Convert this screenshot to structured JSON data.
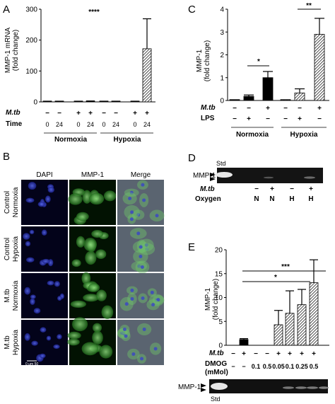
{
  "figure": {
    "panel_a": {
      "letter": "A",
      "ylabel_line1": "MMP-1 mRNA",
      "ylabel_line2": "(fold change)",
      "significance": "****",
      "row_mtb_label": "M.tb",
      "row_mtb": [
        "−",
        "−",
        "+",
        "+",
        "−",
        "−",
        "+",
        "+"
      ],
      "row_time_label": "Time",
      "row_time": [
        "0",
        "24",
        "0",
        "24",
        "0",
        "24",
        "0",
        "24"
      ],
      "group_labels": [
        "Normoxia",
        "Hypoxia"
      ]
    },
    "panel_b": {
      "letter": "B",
      "col_headers": [
        "DAPI",
        "MMP-1",
        "Merge"
      ],
      "row_labels": [
        {
          "line1": "Control",
          "line2": "Normoxia"
        },
        {
          "line1": "Control",
          "line2": "Hypoxia"
        },
        {
          "line1": "M.tb",
          "line2": "Normoxia"
        },
        {
          "line1": "M.tb",
          "line2": "Hypoxia"
        }
      ],
      "scale_label": "0  μm  50"
    },
    "panel_c": {
      "letter": "C",
      "ylabel_line1": "MMP-1",
      "ylabel_line2": "(fold change)",
      "sig_normoxia": "*",
      "sig_hypoxia": "**",
      "row_mtb_label": "M.tb",
      "row_mtb": [
        "−",
        "−",
        "+",
        "−",
        "−",
        "+"
      ],
      "row_lps_label": "LPS",
      "row_lps": [
        "−",
        "+",
        "−",
        "−",
        "+",
        "−"
      ],
      "group_labels": [
        "Normoxia",
        "Hypoxia"
      ]
    },
    "panel_d": {
      "letter": "D",
      "std_label": "Std",
      "band_label": "MMP-1",
      "row_mtb_label": "M.tb",
      "row_mtb": [
        "−",
        "+",
        "−",
        "+"
      ],
      "row_oxygen_label": "Oxygen",
      "row_oxygen": [
        "N",
        "N",
        "H",
        "H"
      ]
    },
    "panel_e": {
      "letter": "E",
      "ylabel_line1": "MMP-1",
      "ylabel_line2": "(fold change)",
      "sig_top": "***",
      "sig_second": "*",
      "row_mtb_label": "M.tb",
      "row_mtb": [
        "−",
        "+",
        "−",
        "−",
        "+",
        "+",
        "+",
        "+"
      ],
      "row_dmog_label_line1": "DMOG",
      "row_dmog_label_line2": "(mMol)",
      "row_dmog": [
        "−",
        "−",
        "0.1",
        "0.5",
        "0.05",
        "0.1",
        "0.25",
        "0.5"
      ],
      "band_label": "MMP-1",
      "std_label": "Std"
    }
  },
  "chart_data": [
    {
      "panel": "A",
      "type": "bar",
      "ylabel": "MMP-1 mRNA (fold change)",
      "ylim": [
        0,
        300
      ],
      "yticks": [
        0,
        100,
        200,
        300
      ],
      "categories": [
        "M.tb − / 0",
        "M.tb − / 24",
        "M.tb + / 0",
        "M.tb + / 24",
        "M.tb − / 0",
        "M.tb − / 24",
        "M.tb + / 0",
        "M.tb + / 24"
      ],
      "values": [
        1,
        1,
        1,
        2,
        1,
        1,
        1,
        172
      ],
      "errors": [
        0.5,
        0.5,
        0.5,
        1,
        0.5,
        0.5,
        0.5,
        97
      ],
      "hatched": [
        false,
        false,
        false,
        false,
        false,
        false,
        false,
        true
      ],
      "groups": [
        "Normoxia",
        "Normoxia",
        "Normoxia",
        "Normoxia",
        "Hypoxia",
        "Hypoxia",
        "Hypoxia",
        "Hypoxia"
      ]
    },
    {
      "panel": "C",
      "type": "bar",
      "ylabel": "MMP-1 (fold change)",
      "ylim": [
        0,
        4
      ],
      "yticks": [
        0,
        1,
        2,
        3,
        4
      ],
      "categories": [
        "− / −",
        "− / +",
        "+ / −",
        "− / −",
        "− / +",
        "+ / −"
      ],
      "values": [
        0.02,
        0.18,
        1.0,
        0.02,
        0.33,
        2.9
      ],
      "errors": [
        0.01,
        0.06,
        0.27,
        0.01,
        0.18,
        0.7
      ],
      "fill": [
        "black",
        "black",
        "black",
        "hatched",
        "hatched",
        "hatched"
      ],
      "groups": [
        "Normoxia",
        "Normoxia",
        "Normoxia",
        "Hypoxia",
        "Hypoxia",
        "Hypoxia"
      ]
    },
    {
      "panel": "E",
      "type": "bar",
      "ylabel": "MMP-1 (fold change)",
      "ylim": [
        0,
        20
      ],
      "yticks": [
        0,
        5,
        10,
        15,
        20
      ],
      "categories": [
        "− / −",
        "+ / −",
        "− / 0.1",
        "− / 0.5",
        "+ / 0.05",
        "+ / 0.1",
        "+ / 0.25",
        "+ / 0.5"
      ],
      "values": [
        0,
        1.2,
        0,
        0,
        4.3,
        6.7,
        8.5,
        13.1
      ],
      "errors": [
        0,
        0.2,
        0,
        0,
        3.0,
        4.7,
        3.2,
        4.8
      ],
      "hatched": [
        false,
        false,
        false,
        false,
        true,
        true,
        true,
        true
      ]
    }
  ]
}
